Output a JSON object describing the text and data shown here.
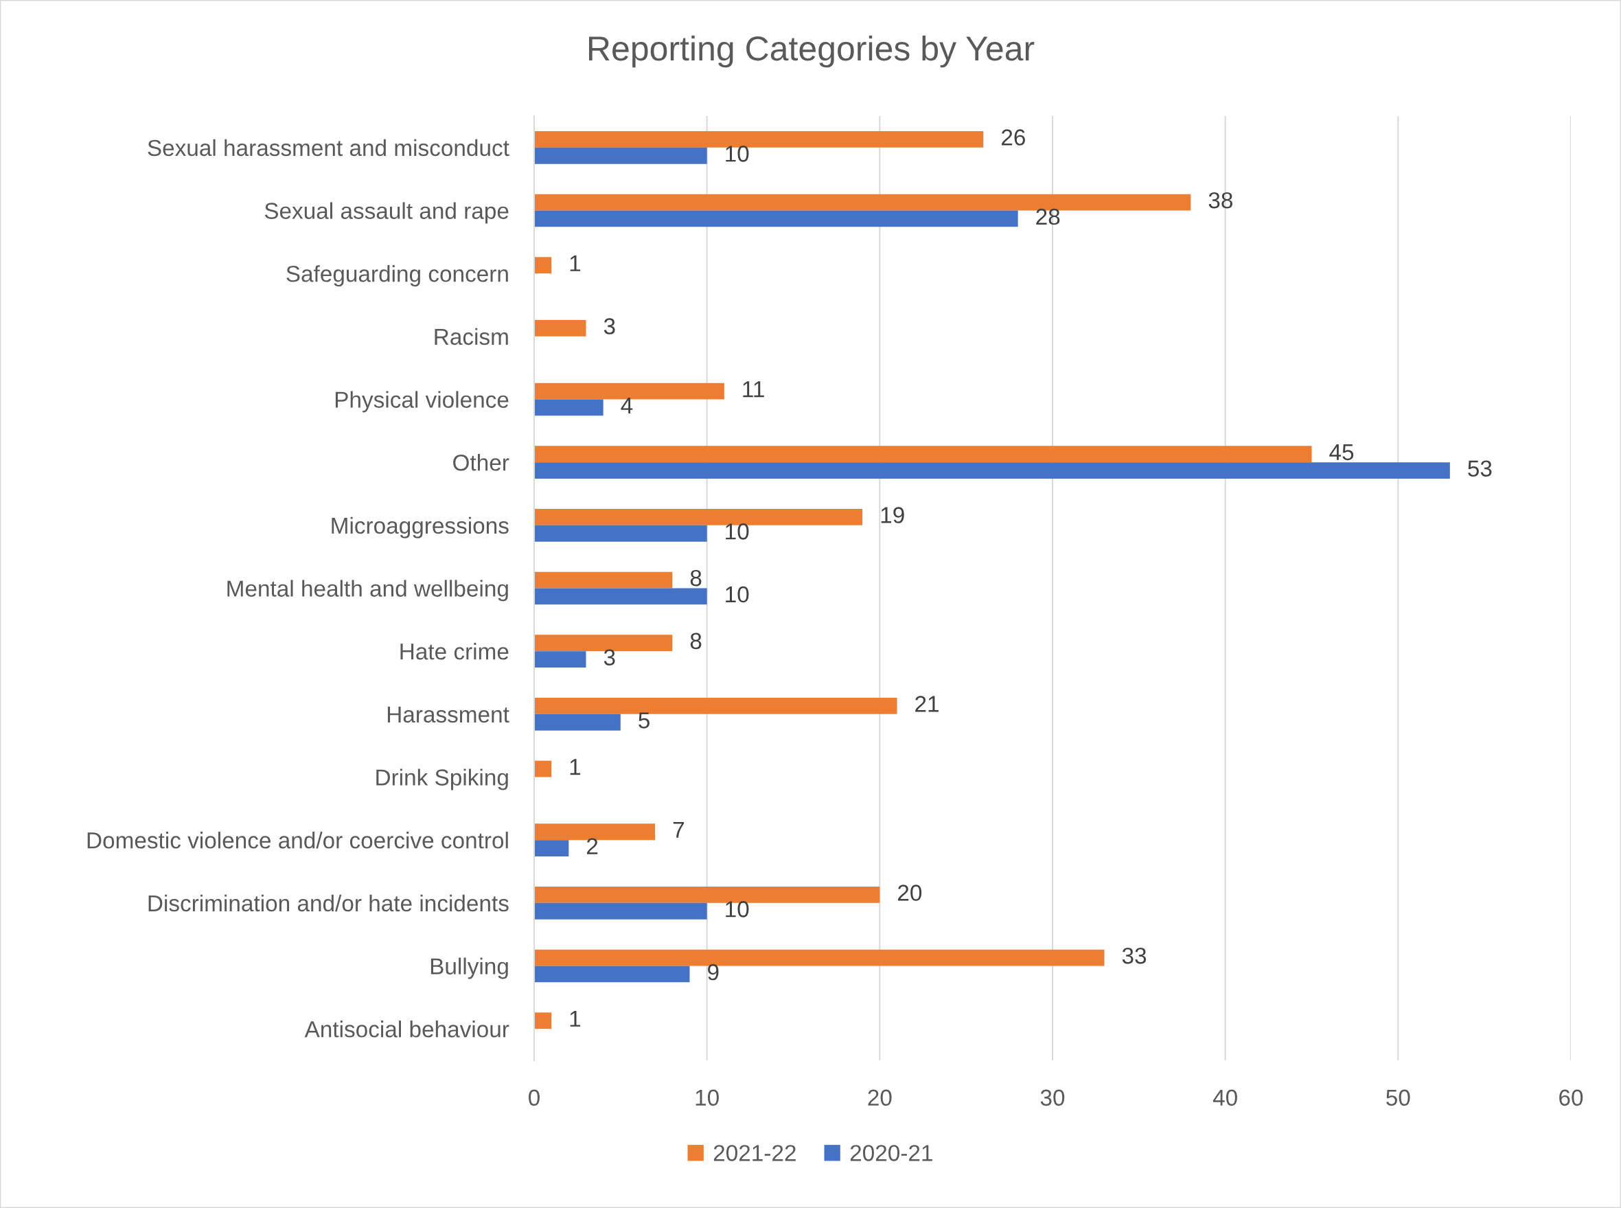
{
  "chart_data": {
    "type": "bar",
    "orientation": "horizontal",
    "title": "Reporting Categories by Year",
    "categories": [
      "Sexual harassment and misconduct",
      "Sexual assault and rape",
      "Safeguarding concern",
      "Racism",
      "Physical violence",
      "Other",
      "Microaggressions",
      "Mental health and wellbeing",
      "Hate crime",
      "Harassment",
      "Drink Spiking",
      "Domestic violence and/or coercive control",
      "Discrimination and/or hate incidents",
      "Bullying",
      "Antisocial behaviour"
    ],
    "series": [
      {
        "name": "2021-22",
        "color": "#ed7d31",
        "values": [
          26,
          38,
          1,
          3,
          11,
          45,
          19,
          8,
          8,
          21,
          1,
          7,
          20,
          33,
          1
        ]
      },
      {
        "name": "2020-21",
        "color": "#4472c4",
        "values": [
          10,
          28,
          null,
          null,
          4,
          53,
          10,
          10,
          3,
          5,
          null,
          2,
          10,
          9,
          null
        ]
      }
    ],
    "xlim": [
      0,
      60
    ],
    "xticks": [
      0,
      10,
      20,
      30,
      40,
      50,
      60
    ],
    "grid": "x",
    "legend": "bottom",
    "data_labels": true
  }
}
